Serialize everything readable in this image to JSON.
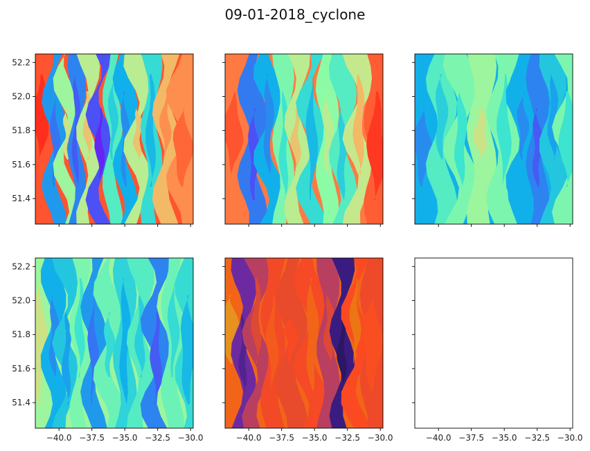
{
  "figure": {
    "title": "09-01-2018_cyclone"
  },
  "chart_data": {
    "type": "heatmap",
    "title": "09-01-2018_cyclone",
    "xlim": [
      -41.8,
      -29.8
    ],
    "ylim": [
      51.25,
      52.25
    ],
    "x_ticks": [
      -40.0,
      -37.5,
      -35.0,
      -32.5,
      -30.0
    ],
    "x_tick_labels": [
      "−40.0",
      "−37.5",
      "−35.0",
      "−32.5",
      "−30.0"
    ],
    "y_ticks": [
      51.4,
      51.6,
      51.8,
      52.0,
      52.2
    ],
    "y_tick_labels": [
      "51.4",
      "51.6",
      "51.8",
      "52.0",
      "52.2"
    ],
    "panels": [
      {
        "id": "r1c1",
        "colormap": "rainbow",
        "bands": [
          {
            "x": -41.4,
            "value": 0.9
          },
          {
            "x": -40.3,
            "value": 0.25
          },
          {
            "x": -39.4,
            "value": 0.55
          },
          {
            "x": -38.7,
            "value": 0.2
          },
          {
            "x": -37.8,
            "value": 0.6
          },
          {
            "x": -36.9,
            "value": 0.1
          },
          {
            "x": -35.9,
            "value": 0.45
          },
          {
            "x": -35.0,
            "value": 0.3
          },
          {
            "x": -34.0,
            "value": 0.6
          },
          {
            "x": -33.0,
            "value": 0.4
          },
          {
            "x": -31.9,
            "value": 0.7
          },
          {
            "x": -30.6,
            "value": 0.78
          }
        ]
      },
      {
        "id": "r1c2",
        "colormap": "rainbow",
        "bands": [
          {
            "x": -41.2,
            "value": 0.82
          },
          {
            "x": -39.6,
            "value": 0.18
          },
          {
            "x": -38.5,
            "value": 0.3
          },
          {
            "x": -37.3,
            "value": 0.5
          },
          {
            "x": -36.4,
            "value": 0.6
          },
          {
            "x": -35.2,
            "value": 0.4
          },
          {
            "x": -34.0,
            "value": 0.52
          },
          {
            "x": -32.9,
            "value": 0.45
          },
          {
            "x": -31.6,
            "value": 0.62
          },
          {
            "x": -30.3,
            "value": 0.88
          }
        ]
      },
      {
        "id": "r1c3",
        "colormap": "rainbow",
        "bands": [
          {
            "x": -41.2,
            "value": 0.3
          },
          {
            "x": -39.8,
            "value": 0.45
          },
          {
            "x": -38.3,
            "value": 0.5
          },
          {
            "x": -36.8,
            "value": 0.55
          },
          {
            "x": -35.0,
            "value": 0.5
          },
          {
            "x": -33.6,
            "value": 0.3
          },
          {
            "x": -32.5,
            "value": 0.2
          },
          {
            "x": -31.3,
            "value": 0.35
          },
          {
            "x": -30.2,
            "value": 0.5
          }
        ]
      },
      {
        "id": "r2c1",
        "colormap": "rainbow",
        "bands": [
          {
            "x": -41.5,
            "value": 0.55
          },
          {
            "x": -40.4,
            "value": 0.3
          },
          {
            "x": -39.4,
            "value": 0.35
          },
          {
            "x": -38.4,
            "value": 0.5
          },
          {
            "x": -37.4,
            "value": 0.25
          },
          {
            "x": -36.2,
            "value": 0.48
          },
          {
            "x": -35.0,
            "value": 0.38
          },
          {
            "x": -33.8,
            "value": 0.45
          },
          {
            "x": -32.6,
            "value": 0.2
          },
          {
            "x": -31.3,
            "value": 0.48
          },
          {
            "x": -30.2,
            "value": 0.4
          }
        ]
      },
      {
        "id": "r2c2",
        "colormap": "inferno",
        "bands": [
          {
            "x": -41.4,
            "value": 0.8
          },
          {
            "x": -40.4,
            "value": 0.35
          },
          {
            "x": -39.4,
            "value": 0.55
          },
          {
            "x": -38.2,
            "value": 0.7
          },
          {
            "x": -36.8,
            "value": 0.65
          },
          {
            "x": -35.2,
            "value": 0.72
          },
          {
            "x": -33.9,
            "value": 0.55
          },
          {
            "x": -32.9,
            "value": 0.2
          },
          {
            "x": -31.9,
            "value": 0.75
          },
          {
            "x": -30.6,
            "value": 0.68
          }
        ]
      },
      {
        "id": "r2c3",
        "colormap": "none",
        "bands": []
      }
    ]
  }
}
